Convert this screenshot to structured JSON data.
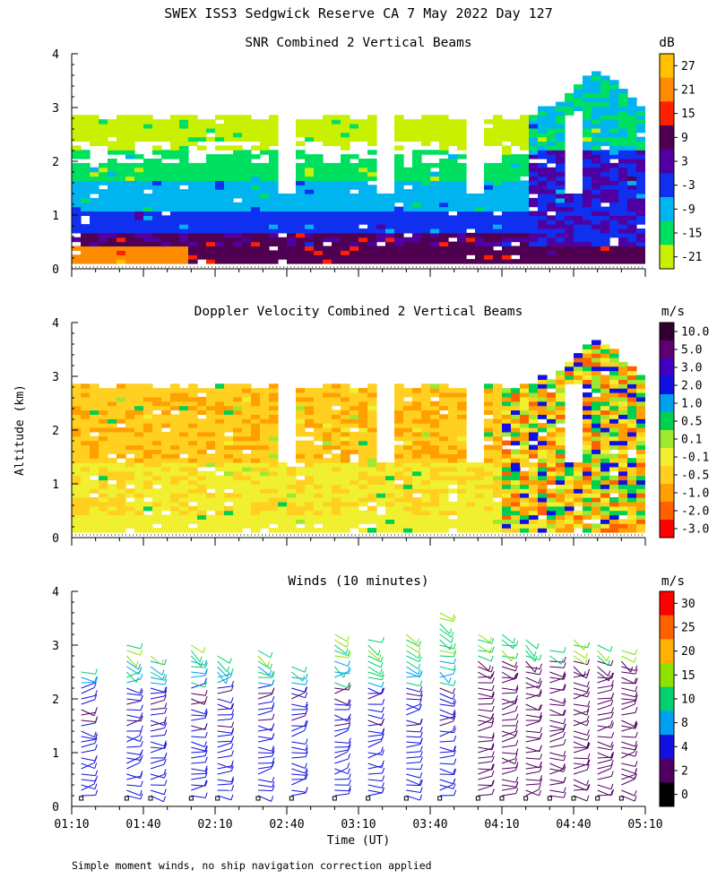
{
  "header": {
    "title": "SWEX ISS3 Sedgwick Reserve CA   7 May 2022 Day 127"
  },
  "footer": {
    "note": "Simple moment winds, no ship navigation correction applied"
  },
  "chart_data": [
    {
      "type": "heatmap",
      "title": "SNR Combined 2 Vertical Beams",
      "ylabel": "",
      "colorbar_unit": "dB",
      "colorbar_labels": [
        "27",
        "21",
        "15",
        "9",
        "3",
        "-3",
        "-9",
        "-15",
        "-21"
      ],
      "colorbar_colors": [
        "#ffc000",
        "#ff8c00",
        "#ff2000",
        "#500050",
        "#5000a0",
        "#1030f0",
        "#00b4f0",
        "#00e060",
        "#c8f000"
      ],
      "xlim": [
        "01:10",
        "05:10"
      ],
      "ylim": [
        0,
        4
      ],
      "y_ticks": [
        "0",
        "1",
        "2",
        "3",
        "4"
      ],
      "x_ticks": [
        "01:10",
        "01:40",
        "02:10",
        "02:40",
        "03:10",
        "03:40",
        "04:10",
        "04:40",
        "05:10"
      ],
      "x_tick_labels_shown": false
    },
    {
      "type": "heatmap",
      "title": "Doppler Velocity Combined 2 Vertical Beams",
      "ylabel": "Altitude (km)",
      "colorbar_unit": "m/s",
      "colorbar_labels": [
        "10.0",
        "5.0",
        "3.0",
        "2.0",
        "1.0",
        "0.5",
        "0.1",
        "-0.1",
        "-0.5",
        "-1.0",
        "-2.0",
        "-3.0"
      ],
      "colorbar_colors": [
        "#300030",
        "#600070",
        "#4000c0",
        "#1010e0",
        "#00a0f0",
        "#00d050",
        "#a0e830",
        "#f0f030",
        "#ffd020",
        "#ffa000",
        "#ff6000",
        "#ff0000"
      ],
      "xlim": [
        "01:10",
        "05:10"
      ],
      "ylim": [
        0,
        4
      ],
      "y_ticks": [
        "0",
        "1",
        "2",
        "3",
        "4"
      ],
      "x_ticks": [
        "01:10",
        "01:40",
        "02:10",
        "02:40",
        "03:10",
        "03:40",
        "04:10",
        "04:40",
        "05:10"
      ],
      "x_tick_labels_shown": false
    },
    {
      "type": "scatter",
      "title": "Winds (10 minutes)",
      "ylabel": "",
      "xlabel": "Time (UT)",
      "colorbar_unit": "m/s",
      "colorbar_labels": [
        "30",
        "25",
        "20",
        "15",
        "10",
        "8",
        "4",
        "2",
        "0"
      ],
      "colorbar_colors": [
        "#ff0000",
        "#ff6000",
        "#ffb000",
        "#90e000",
        "#00d070",
        "#00a0f0",
        "#1010e0",
        "#500060",
        "#000000"
      ],
      "xlim": [
        "01:10",
        "05:10"
      ],
      "ylim": [
        0,
        4
      ],
      "y_ticks": [
        "0",
        "1",
        "2",
        "3",
        "4"
      ],
      "x_ticks": [
        "01:10",
        "01:40",
        "02:10",
        "02:40",
        "03:10",
        "03:40",
        "04:10",
        "04:40",
        "05:10"
      ],
      "x_tick_labels_shown": true,
      "profile_times": [
        "01:14",
        "01:33",
        "01:43",
        "02:00",
        "02:11",
        "02:28",
        "02:42",
        "03:00",
        "03:14",
        "03:30",
        "03:44",
        "04:00",
        "04:10",
        "04:20",
        "04:30",
        "04:40",
        "04:50",
        "05:00"
      ],
      "profile_top_km": [
        2.6,
        3.1,
        2.9,
        3.1,
        2.9,
        3.0,
        2.7,
        3.3,
        3.2,
        3.3,
        3.7,
        3.3,
        3.3,
        3.2,
        3.0,
        3.2,
        3.1,
        3.0
      ]
    }
  ]
}
